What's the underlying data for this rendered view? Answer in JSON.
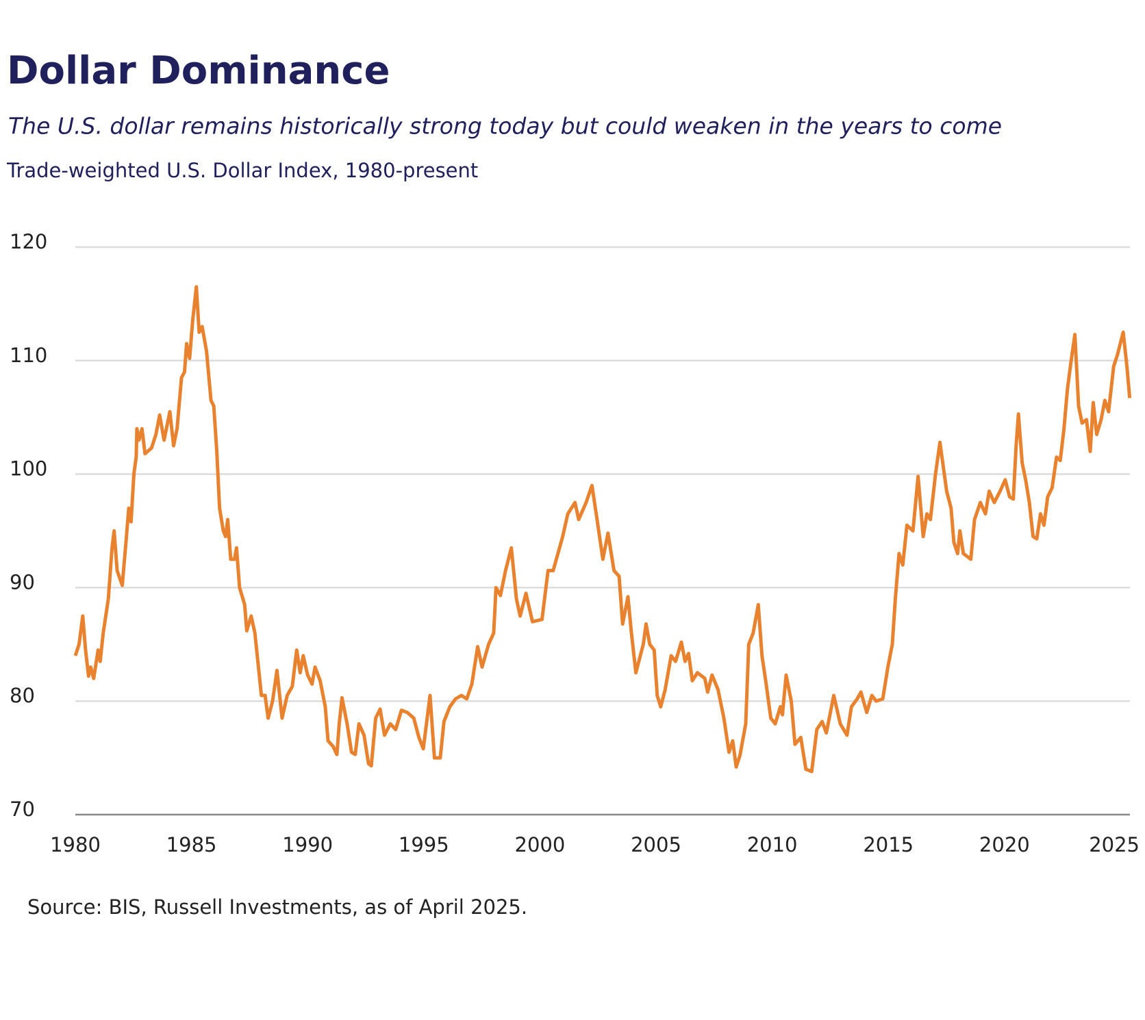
{
  "chart_data": {
    "type": "line",
    "title": "Dollar Dominance",
    "subtitle": "The U.S. dollar remains historically strong today but could weaken in the years to come",
    "description": "Trade-weighted U.S. Dollar Index, 1980-present",
    "source": "Source: BIS, Russell Investments, as of April 2025.",
    "color": "#e8822e",
    "grid": true,
    "xlim": [
      1980,
      2025.4
    ],
    "xticks": [
      1980,
      1985,
      1990,
      1995,
      2000,
      2005,
      2010,
      2015,
      2020,
      2025
    ],
    "ylim": [
      70,
      120
    ],
    "yticks": [
      70,
      80,
      90,
      100,
      110,
      120
    ],
    "x": [
      1980.0,
      1980.16,
      1980.32,
      1980.44,
      1980.57,
      1980.66,
      1980.79,
      1980.98,
      1981.07,
      1981.2,
      1981.42,
      1981.58,
      1981.67,
      1981.8,
      1982.02,
      1982.18,
      1982.3,
      1982.4,
      1982.52,
      1982.62,
      1982.65,
      1982.74,
      1982.87,
      1983.0,
      1983.28,
      1983.47,
      1983.63,
      1983.82,
      1984.07,
      1984.23,
      1984.38,
      1984.57,
      1984.7,
      1984.79,
      1984.92,
      1985.05,
      1985.21,
      1985.33,
      1985.46,
      1985.65,
      1985.84,
      1985.96,
      1986.09,
      1986.21,
      1986.37,
      1986.47,
      1986.56,
      1986.69,
      1986.85,
      1986.94,
      1987.07,
      1987.29,
      1987.38,
      1987.57,
      1987.73,
      1988.01,
      1988.17,
      1988.3,
      1988.49,
      1988.68,
      1988.9,
      1989.12,
      1989.34,
      1989.53,
      1989.68,
      1989.81,
      1990.0,
      1990.19,
      1990.32,
      1990.54,
      1990.76,
      1990.88,
      1991.1,
      1991.26,
      1991.36,
      1991.48,
      1991.7,
      1991.89,
      1992.05,
      1992.21,
      1992.43,
      1992.62,
      1992.74,
      1992.93,
      1993.12,
      1993.31,
      1993.56,
      1993.79,
      1994.04,
      1994.29,
      1994.57,
      1994.79,
      1994.98,
      1995.27,
      1995.46,
      1995.71,
      1995.87,
      1996.12,
      1996.37,
      1996.62,
      1996.85,
      1997.07,
      1997.32,
      1997.51,
      1997.79,
      1998.01,
      1998.11,
      1998.3,
      1998.52,
      1998.77,
      1998.99,
      1999.15,
      1999.4,
      1999.68,
      2000.09,
      2000.35,
      2000.57,
      2000.98,
      2001.2,
      2001.51,
      2001.67,
      2001.99,
      2002.24,
      2002.46,
      2002.71,
      2002.93,
      2003.19,
      2003.41,
      2003.56,
      2003.79,
      2003.94,
      2004.13,
      2004.45,
      2004.57,
      2004.73,
      2004.92,
      2005.05,
      2005.2,
      2005.39,
      2005.65,
      2005.84,
      2006.09,
      2006.25,
      2006.4,
      2006.56,
      2006.78,
      2007.1,
      2007.22,
      2007.41,
      2007.67,
      2007.92,
      2008.14,
      2008.3,
      2008.45,
      2008.61,
      2008.86,
      2008.99,
      2009.18,
      2009.4,
      2009.56,
      2009.72,
      2009.94,
      2010.13,
      2010.35,
      2010.44,
      2010.6,
      2010.82,
      2010.98,
      2011.23,
      2011.45,
      2011.7,
      2011.92,
      2012.15,
      2012.33,
      2012.65,
      2012.93,
      2013.22,
      2013.41,
      2013.66,
      2013.82,
      2014.07,
      2014.29,
      2014.48,
      2014.76,
      2014.98,
      2015.17,
      2015.3,
      2015.46,
      2015.62,
      2015.8,
      2016.06,
      2016.28,
      2016.5,
      2016.66,
      2016.81,
      2017.03,
      2017.22,
      2017.51,
      2017.7,
      2017.82,
      2017.98,
      2018.08,
      2018.23,
      2018.55,
      2018.71,
      2018.96,
      2019.18,
      2019.34,
      2019.56,
      2019.81,
      2020.03,
      2020.22,
      2020.38,
      2020.5,
      2020.6,
      2020.76,
      2020.91,
      2021.07,
      2021.23,
      2021.39,
      2021.55,
      2021.7,
      2021.86,
      2022.05,
      2022.24,
      2022.4,
      2022.56,
      2022.71,
      2022.87,
      2023.03,
      2023.19,
      2023.34,
      2023.53,
      2023.69,
      2023.82,
      2023.97,
      2024.16,
      2024.32,
      2024.48,
      2024.7,
      2024.86,
      2025.11,
      2025.27,
      2025.39
    ],
    "values": [
      84,
      85,
      87.5,
      84.5,
      82.2,
      83,
      82,
      84.5,
      83.5,
      86,
      89,
      93.5,
      95,
      91.5,
      90.2,
      94,
      97,
      95.8,
      100,
      101.5,
      104,
      103,
      104,
      101.8,
      102.3,
      103.5,
      105.2,
      103,
      105.5,
      102.5,
      104,
      108.5,
      109,
      111.5,
      110.2,
      113.5,
      116.5,
      112.5,
      113,
      110.8,
      106.5,
      106,
      102,
      97,
      95,
      94.5,
      96,
      92.5,
      92.5,
      93.5,
      90,
      88.5,
      86.2,
      87.5,
      86,
      80.5,
      80.5,
      78.5,
      80,
      82.7,
      78.5,
      80.5,
      81.3,
      84.5,
      82.5,
      84,
      82.3,
      81.5,
      83,
      81.8,
      79.5,
      76.5,
      76,
      75.3,
      78,
      80.3,
      78,
      75.5,
      75.3,
      78,
      77,
      74.5,
      74.3,
      78.5,
      79.3,
      77,
      78,
      77.5,
      79.2,
      79,
      78.5,
      76.8,
      75.8,
      80.5,
      75,
      75,
      78.2,
      79.5,
      80.2,
      80.5,
      80.2,
      81.5,
      84.8,
      83,
      85,
      86,
      90,
      89.3,
      91.5,
      93.5,
      89,
      87.5,
      89.5,
      87,
      87.2,
      91.5,
      91.5,
      94.5,
      96.5,
      97.5,
      96,
      97.5,
      99,
      96,
      92.5,
      94.8,
      91.5,
      91,
      86.8,
      89.2,
      86,
      82.5,
      85,
      86.8,
      85,
      84.5,
      80.5,
      79.5,
      81,
      84,
      83.5,
      85.2,
      83.5,
      84.2,
      81.8,
      82.5,
      82,
      80.8,
      82.3,
      81,
      78.5,
      75.5,
      76.5,
      74.2,
      75.2,
      78,
      85,
      86,
      88.5,
      84,
      81.8,
      78.5,
      78,
      79.5,
      78.8,
      82.3,
      80,
      76.2,
      76.8,
      74,
      73.8,
      77.5,
      78.2,
      77.2,
      80.5,
      78,
      77,
      79.5,
      80.2,
      80.8,
      79,
      80.5,
      80,
      80.2,
      83,
      85,
      89,
      93,
      92,
      95.5,
      95,
      99.8,
      94.5,
      96.5,
      96,
      100,
      102.8,
      98.5,
      97,
      94,
      93,
      95,
      93,
      92.5,
      96,
      97.5,
      96.5,
      98.5,
      97.5,
      98.5,
      99.5,
      98,
      97.8,
      102.5,
      105.3,
      101,
      99.5,
      97.5,
      94.5,
      94.3,
      96.5,
      95.5,
      98,
      98.8,
      101.5,
      101.2,
      104,
      107.5,
      110,
      112.3,
      106,
      104.5,
      104.8,
      102,
      106.3,
      103.5,
      104.8,
      106.5,
      105.5,
      109.5,
      110.5,
      112.5,
      109.5,
      106.7
    ]
  }
}
